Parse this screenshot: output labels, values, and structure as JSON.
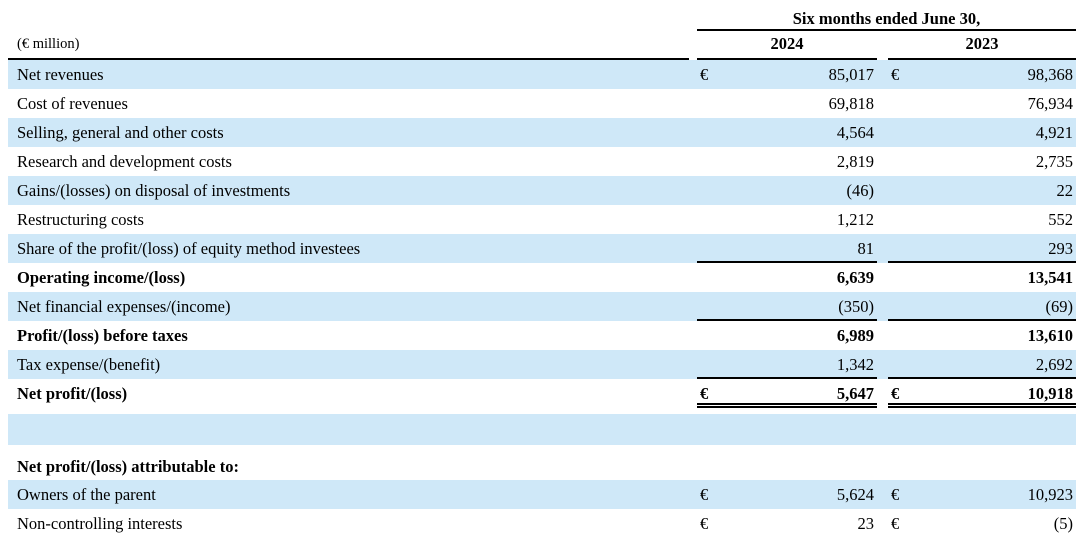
{
  "table": {
    "unit_label": "(€ million)",
    "period_header": "Six months ended June 30,",
    "columns": {
      "y2024": "2024",
      "y2023": "2023"
    },
    "colors": {
      "stripe_blue": "#cfe8f8",
      "rule_black": "#000000"
    },
    "rows": [
      {
        "label": "Net revenues",
        "cur_2024": "€",
        "val_2024": "85,017",
        "cur_2023": "€",
        "val_2023": "98,368"
      },
      {
        "label": "Cost of revenues",
        "val_2024": "69,818",
        "val_2023": "76,934"
      },
      {
        "label": "Selling, general and other costs",
        "val_2024": "4,564",
        "val_2023": "4,921"
      },
      {
        "label": "Research and development costs",
        "val_2024": "2,819",
        "val_2023": "2,735"
      },
      {
        "label": "Gains/(losses) on disposal of investments",
        "val_2024": "(46)",
        "val_2023": "22"
      },
      {
        "label": "Restructuring costs",
        "val_2024": "1,212",
        "val_2023": "552"
      },
      {
        "label": "Share of the profit/(loss) of equity method investees",
        "val_2024": "81",
        "val_2023": "293"
      },
      {
        "label": "Operating income/(loss)",
        "val_2024": "6,639",
        "val_2023": "13,541"
      },
      {
        "label": "Net financial expenses/(income)",
        "val_2024": "(350)",
        "val_2023": "(69)"
      },
      {
        "label": "Profit/(loss) before taxes",
        "val_2024": "6,989",
        "val_2023": "13,610"
      },
      {
        "label": "Tax expense/(benefit)",
        "val_2024": "1,342",
        "val_2023": "2,692"
      },
      {
        "label": "Net profit/(loss)",
        "cur_2024": "€",
        "val_2024": "5,647",
        "cur_2023": "€",
        "val_2023": "10,918"
      },
      {
        "type": "spacer-shaded"
      },
      {
        "type": "spacer-white"
      },
      {
        "label": "Net profit/(loss) attributable to:"
      },
      {
        "label": "Owners of the parent",
        "cur_2024": "€",
        "val_2024": "5,624",
        "cur_2023": "€",
        "val_2023": "10,923"
      },
      {
        "label": "Non-controlling interests",
        "cur_2024": "€",
        "val_2024": "23",
        "cur_2023": "€",
        "val_2023": "(5)"
      }
    ]
  }
}
